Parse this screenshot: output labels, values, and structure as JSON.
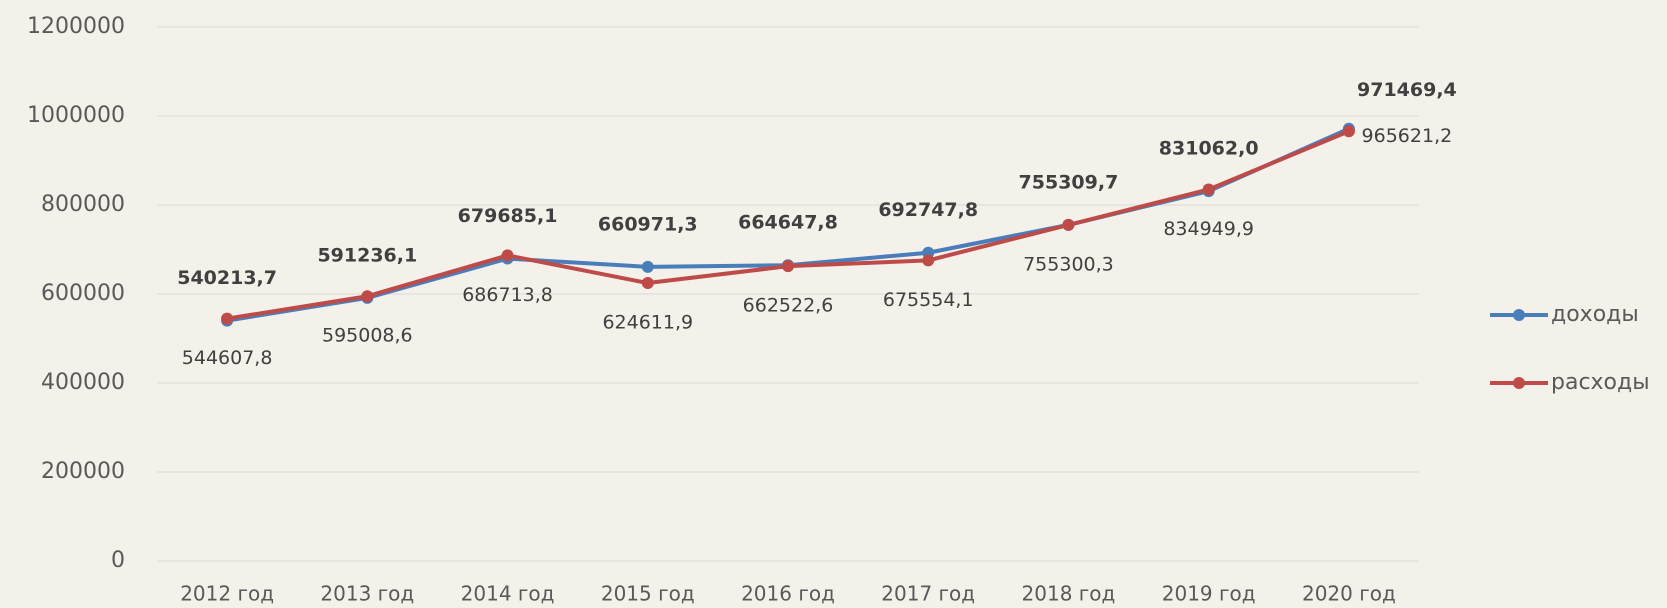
{
  "chart_data": {
    "type": "line",
    "categories": [
      "2012 год",
      "2013 год",
      "2014 год",
      "2015 год",
      "2016 год",
      "2017 год",
      "2018 год",
      "2019 год",
      "2020 год"
    ],
    "series": [
      {
        "name": "доходы",
        "color": "#4a7ebb",
        "values": [
          540213.7,
          591236.1,
          679685.1,
          660971.3,
          664647.8,
          692747.8,
          755309.7,
          831062.0,
          971469.4
        ],
        "value_labels": [
          "540213,7",
          "591236,1",
          "679685,1",
          "660971,3",
          "664647,8",
          "692747,8",
          "755309,7",
          "831062,0",
          "971469,4"
        ]
      },
      {
        "name": "расходы",
        "color": "#be4b48",
        "values": [
          544607.8,
          595008.6,
          686713.8,
          624611.9,
          662522.6,
          675554.1,
          755300.3,
          834949.9,
          965621.2
        ],
        "value_labels": [
          "544607,8",
          "595008,6",
          "686713,8",
          "624611,9",
          "662522,6",
          "675554,1",
          "755300,3",
          "834949,9",
          "965621,2"
        ]
      }
    ],
    "ylim": [
      0,
      1200000
    ],
    "yticks": [
      0,
      200000,
      400000,
      600000,
      800000,
      1000000,
      1200000
    ],
    "grid": true,
    "legend": "right"
  }
}
